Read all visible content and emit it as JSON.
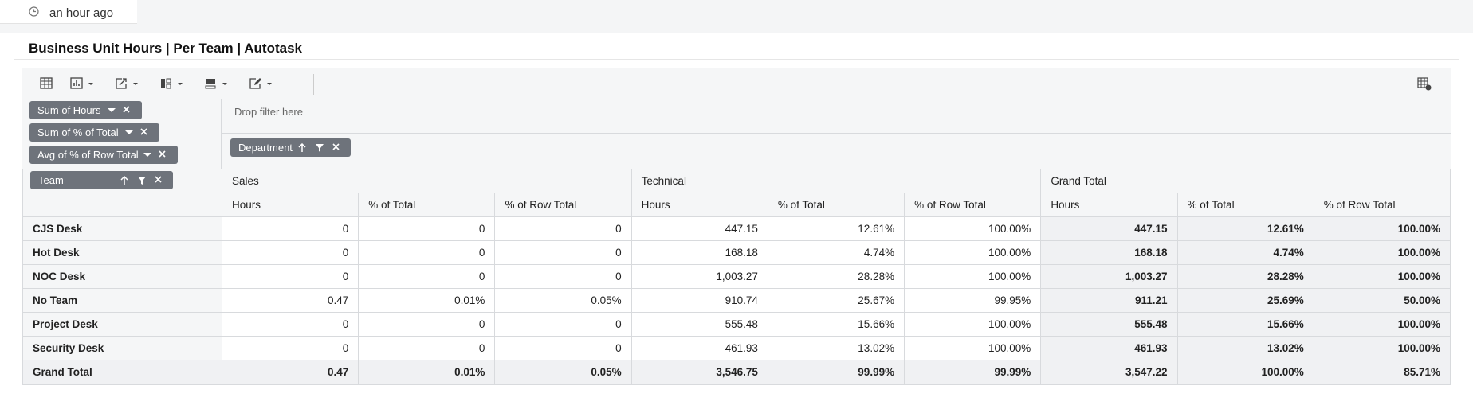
{
  "header": {
    "time": "an hour ago"
  },
  "widget": {
    "title": "Business Unit Hours | Per Team | Autotask",
    "value_fields": [
      "Sum of Hours",
      "Sum of % of Total",
      "Avg of % of Row Total"
    ],
    "row_field": "Team",
    "filter_placeholder": "Drop filter here",
    "column_field": "Department"
  },
  "table": {
    "groups": [
      "Sales",
      "Technical",
      "Grand Total"
    ],
    "columns": [
      "Hours",
      "% of Total",
      "% of Row Total",
      "Hours",
      "% of Total",
      "% of Row Total",
      "Hours",
      "% of Total",
      "% of Row Total"
    ],
    "rows": [
      [
        "CJS Desk",
        "0",
        "0",
        "0",
        "447.15",
        "12.61%",
        "100.00%",
        "447.15",
        "12.61%",
        "100.00%"
      ],
      [
        "Hot Desk",
        "0",
        "0",
        "0",
        "168.18",
        "4.74%",
        "100.00%",
        "168.18",
        "4.74%",
        "100.00%"
      ],
      [
        "NOC Desk",
        "0",
        "0",
        "0",
        "1,003.27",
        "28.28%",
        "100.00%",
        "1,003.27",
        "28.28%",
        "100.00%"
      ],
      [
        "No Team",
        "0.47",
        "0.01%",
        "0.05%",
        "910.74",
        "25.67%",
        "99.95%",
        "911.21",
        "25.69%",
        "50.00%"
      ],
      [
        "Project Desk",
        "0",
        "0",
        "0",
        "555.48",
        "15.66%",
        "100.00%",
        "555.48",
        "15.66%",
        "100.00%"
      ],
      [
        "Security Desk",
        "0",
        "0",
        "0",
        "461.93",
        "13.02%",
        "100.00%",
        "461.93",
        "13.02%",
        "100.00%"
      ]
    ],
    "total": [
      "Grand Total",
      "0.47",
      "0.01%",
      "0.05%",
      "3,546.75",
      "99.99%",
      "99.99%",
      "3,547.22",
      "100.00%",
      "85.71%"
    ]
  }
}
